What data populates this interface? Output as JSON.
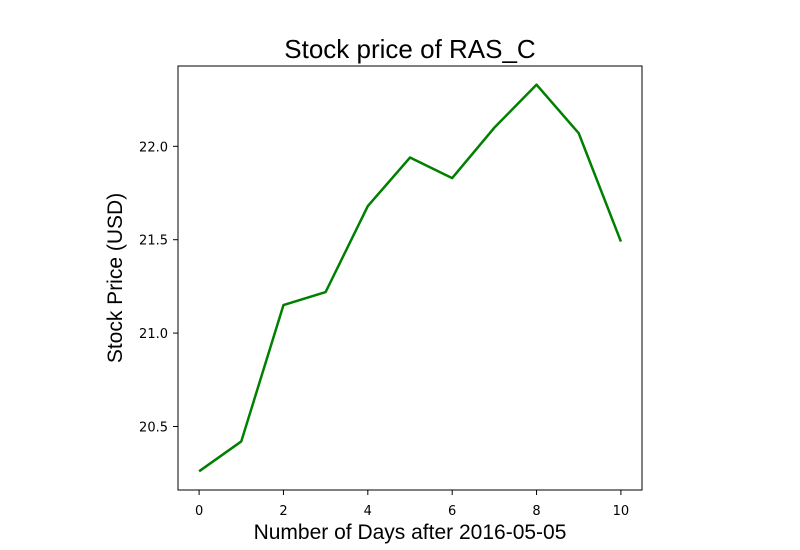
{
  "chart_data": {
    "type": "line",
    "title": "Stock price of RAS_C",
    "xlabel": "Number of Days after 2016-05-05",
    "ylabel": "Stock Price (USD)",
    "x": [
      0,
      1,
      2,
      3,
      4,
      5,
      6,
      7,
      8,
      9,
      10
    ],
    "series": [
      {
        "values": [
          20.26,
          20.42,
          21.15,
          21.22,
          21.68,
          21.94,
          21.83,
          22.1,
          22.33,
          22.07,
          21.49
        ],
        "color": "#008000"
      }
    ],
    "xlim": [
      -0.5,
      10.5
    ],
    "ylim": [
      20.16,
      22.43
    ],
    "xticks": [
      0,
      2,
      4,
      6,
      8,
      10
    ],
    "yticks": [
      20.5,
      21.0,
      21.5,
      22.0
    ],
    "xtick_labels": [
      "0",
      "2",
      "4",
      "6",
      "8",
      "10"
    ],
    "ytick_labels": [
      "20.5",
      "21.0",
      "21.5",
      "22.0"
    ],
    "grid": false,
    "legend": "none"
  }
}
